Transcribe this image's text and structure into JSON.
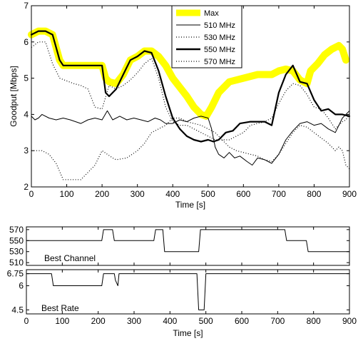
{
  "chart_data": [
    {
      "type": "line",
      "xlabel": "Time [s]",
      "ylabel": "Goodput [Mbps]",
      "xlim": [
        0,
        900
      ],
      "ylim": [
        2,
        7
      ],
      "xticks": [
        "0",
        "100",
        "200",
        "300",
        "400",
        "500",
        "600",
        "700",
        "800",
        "900"
      ],
      "yticks": [
        "2",
        "3",
        "4",
        "5",
        "6",
        "7"
      ],
      "legend_position": "top-center",
      "series": [
        {
          "name": "Max",
          "color": "#ffff00",
          "style": "thick",
          "points": [
            [
              0,
              6.2
            ],
            [
              20,
              6.3
            ],
            [
              40,
              6.3
            ],
            [
              60,
              6.2
            ],
            [
              80,
              5.5
            ],
            [
              90,
              5.35
            ],
            [
              200,
              5.35
            ],
            [
              210,
              5.0
            ],
            [
              220,
              4.9
            ],
            [
              240,
              4.85
            ],
            [
              260,
              5.1
            ],
            [
              280,
              5.5
            ],
            [
              300,
              5.6
            ],
            [
              320,
              5.75
            ],
            [
              340,
              5.75
            ],
            [
              360,
              5.6
            ],
            [
              380,
              5.35
            ],
            [
              400,
              5.0
            ],
            [
              420,
              4.75
            ],
            [
              440,
              4.5
            ],
            [
              460,
              4.2
            ],
            [
              480,
              4.0
            ],
            [
              495,
              3.95
            ],
            [
              510,
              4.2
            ],
            [
              530,
              4.6
            ],
            [
              560,
              4.9
            ],
            [
              600,
              5.0
            ],
            [
              640,
              5.1
            ],
            [
              680,
              5.1
            ],
            [
              700,
              5.2
            ],
            [
              720,
              5.25
            ],
            [
              740,
              5.2
            ],
            [
              760,
              4.95
            ],
            [
              780,
              4.85
            ],
            [
              790,
              5.2
            ],
            [
              810,
              5.4
            ],
            [
              830,
              5.65
            ],
            [
              850,
              5.8
            ],
            [
              870,
              5.9
            ],
            [
              880,
              5.8
            ],
            [
              890,
              5.5
            ]
          ]
        },
        {
          "name": "510 MHz",
          "color": "#000000",
          "style": "thin",
          "points": [
            [
              0,
              3.95
            ],
            [
              10,
              3.85
            ],
            [
              20,
              3.9
            ],
            [
              30,
              4.0
            ],
            [
              50,
              3.9
            ],
            [
              70,
              3.85
            ],
            [
              90,
              3.9
            ],
            [
              110,
              3.85
            ],
            [
              140,
              3.75
            ],
            [
              160,
              3.85
            ],
            [
              180,
              3.9
            ],
            [
              200,
              3.85
            ],
            [
              215,
              4.1
            ],
            [
              230,
              3.85
            ],
            [
              250,
              3.95
            ],
            [
              270,
              3.85
            ],
            [
              290,
              3.9
            ],
            [
              310,
              3.85
            ],
            [
              330,
              3.8
            ],
            [
              350,
              3.9
            ],
            [
              365,
              3.85
            ],
            [
              380,
              3.75
            ],
            [
              400,
              3.75
            ],
            [
              420,
              3.85
            ],
            [
              440,
              3.8
            ],
            [
              460,
              3.9
            ],
            [
              480,
              3.95
            ],
            [
              500,
              3.9
            ],
            [
              510,
              3.6
            ],
            [
              520,
              3.1
            ],
            [
              530,
              2.9
            ],
            [
              545,
              2.8
            ],
            [
              560,
              2.95
            ],
            [
              575,
              2.8
            ],
            [
              590,
              2.85
            ],
            [
              610,
              2.7
            ],
            [
              625,
              2.6
            ],
            [
              640,
              2.8
            ],
            [
              660,
              2.75
            ],
            [
              680,
              2.65
            ],
            [
              700,
              2.9
            ],
            [
              720,
              3.3
            ],
            [
              740,
              3.55
            ],
            [
              760,
              3.75
            ],
            [
              780,
              3.8
            ],
            [
              800,
              3.7
            ],
            [
              820,
              3.75
            ],
            [
              840,
              3.6
            ],
            [
              860,
              3.5
            ],
            [
              880,
              3.9
            ],
            [
              900,
              4.1
            ]
          ]
        },
        {
          "name": "530 MHz",
          "color": "#000000",
          "style": "dotted",
          "points": [
            [
              0,
              3.0
            ],
            [
              30,
              3.0
            ],
            [
              50,
              2.9
            ],
            [
              70,
              2.65
            ],
            [
              90,
              2.2
            ],
            [
              140,
              2.2
            ],
            [
              160,
              2.4
            ],
            [
              180,
              2.6
            ],
            [
              200,
              3.0
            ],
            [
              230,
              2.8
            ],
            [
              240,
              2.75
            ],
            [
              270,
              2.8
            ],
            [
              300,
              3.0
            ],
            [
              320,
              3.2
            ],
            [
              340,
              3.5
            ],
            [
              360,
              3.6
            ],
            [
              380,
              3.7
            ],
            [
              400,
              3.9
            ],
            [
              420,
              3.9
            ],
            [
              440,
              3.8
            ],
            [
              460,
              3.75
            ],
            [
              480,
              3.7
            ],
            [
              500,
              3.6
            ],
            [
              520,
              3.5
            ],
            [
              540,
              3.3
            ],
            [
              560,
              3.1
            ],
            [
              580,
              3.0
            ],
            [
              600,
              2.95
            ],
            [
              620,
              2.9
            ],
            [
              640,
              2.85
            ],
            [
              660,
              2.75
            ],
            [
              680,
              2.7
            ],
            [
              700,
              2.9
            ],
            [
              720,
              3.2
            ],
            [
              740,
              3.5
            ],
            [
              760,
              3.7
            ],
            [
              780,
              3.65
            ],
            [
              800,
              3.5
            ],
            [
              820,
              3.35
            ],
            [
              840,
              3.2
            ],
            [
              860,
              3.0
            ],
            [
              870,
              3.1
            ],
            [
              880,
              3.0
            ],
            [
              890,
              2.6
            ],
            [
              900,
              2.5
            ]
          ]
        },
        {
          "name": "550 MHz",
          "color": "#000000",
          "style": "thick",
          "points": [
            [
              0,
              6.2
            ],
            [
              20,
              6.3
            ],
            [
              40,
              6.3
            ],
            [
              60,
              6.2
            ],
            [
              80,
              5.5
            ],
            [
              90,
              5.35
            ],
            [
              200,
              5.35
            ],
            [
              210,
              4.6
            ],
            [
              220,
              4.5
            ],
            [
              240,
              4.7
            ],
            [
              260,
              5.1
            ],
            [
              280,
              5.5
            ],
            [
              300,
              5.6
            ],
            [
              320,
              5.75
            ],
            [
              340,
              5.7
            ],
            [
              360,
              5.2
            ],
            [
              380,
              4.5
            ],
            [
              400,
              3.9
            ],
            [
              420,
              3.6
            ],
            [
              440,
              3.4
            ],
            [
              460,
              3.3
            ],
            [
              480,
              3.25
            ],
            [
              500,
              3.3
            ],
            [
              515,
              3.25
            ],
            [
              530,
              3.3
            ],
            [
              550,
              3.5
            ],
            [
              570,
              3.55
            ],
            [
              590,
              3.75
            ],
            [
              620,
              3.8
            ],
            [
              640,
              3.8
            ],
            [
              660,
              3.8
            ],
            [
              680,
              3.7
            ],
            [
              700,
              4.6
            ],
            [
              720,
              5.1
            ],
            [
              740,
              5.35
            ],
            [
              760,
              4.9
            ],
            [
              780,
              4.85
            ],
            [
              800,
              4.4
            ],
            [
              820,
              4.1
            ],
            [
              840,
              4.15
            ],
            [
              860,
              4.0
            ],
            [
              880,
              4.0
            ],
            [
              900,
              3.95
            ]
          ]
        },
        {
          "name": "570 MHz",
          "color": "#000000",
          "style": "dotted",
          "points": [
            [
              0,
              5.85
            ],
            [
              20,
              6.0
            ],
            [
              40,
              6.0
            ],
            [
              60,
              5.4
            ],
            [
              80,
              5.0
            ],
            [
              120,
              4.85
            ],
            [
              140,
              4.8
            ],
            [
              160,
              4.7
            ],
            [
              180,
              4.2
            ],
            [
              200,
              4.15
            ],
            [
              220,
              4.8
            ],
            [
              240,
              4.7
            ],
            [
              260,
              4.8
            ],
            [
              280,
              4.95
            ],
            [
              300,
              5.15
            ],
            [
              320,
              5.4
            ],
            [
              340,
              5.55
            ],
            [
              360,
              5.0
            ],
            [
              380,
              4.2
            ],
            [
              400,
              3.8
            ],
            [
              420,
              3.7
            ],
            [
              440,
              3.7
            ],
            [
              460,
              3.6
            ],
            [
              480,
              3.5
            ],
            [
              500,
              3.4
            ],
            [
              520,
              3.3
            ],
            [
              540,
              3.3
            ],
            [
              560,
              3.3
            ],
            [
              580,
              3.4
            ],
            [
              600,
              3.5
            ],
            [
              620,
              3.7
            ],
            [
              640,
              3.75
            ],
            [
              660,
              3.8
            ],
            [
              680,
              3.9
            ],
            [
              700,
              4.3
            ],
            [
              720,
              4.65
            ],
            [
              740,
              4.85
            ],
            [
              760,
              4.8
            ],
            [
              780,
              4.55
            ],
            [
              800,
              4.2
            ],
            [
              820,
              4.15
            ],
            [
              840,
              3.9
            ],
            [
              860,
              3.6
            ],
            [
              880,
              3.8
            ],
            [
              890,
              3.85
            ],
            [
              900,
              4.0
            ]
          ]
        }
      ]
    },
    {
      "type": "line",
      "title": "Best Channel",
      "xlim": [
        0,
        900
      ],
      "ylim": [
        505,
        575
      ],
      "yticks": [
        "510",
        "530",
        "550",
        "570"
      ],
      "series": [
        {
          "color": "#000000",
          "style": "step",
          "points": [
            [
              0,
              550
            ],
            [
              210,
              550
            ],
            [
              215,
              570
            ],
            [
              240,
              570
            ],
            [
              245,
              550
            ],
            [
              355,
              550
            ],
            [
              360,
              570
            ],
            [
              380,
              570
            ],
            [
              385,
              530
            ],
            [
              480,
              530
            ],
            [
              485,
              570
            ],
            [
              720,
              570
            ],
            [
              725,
              550
            ],
            [
              780,
              550
            ],
            [
              785,
              530
            ],
            [
              900,
              530
            ]
          ]
        }
      ]
    },
    {
      "type": "line",
      "title": "Best Rate",
      "xlabel": "Time [s]",
      "xlim": [
        0,
        900
      ],
      "xticks": [
        "0",
        "100",
        "200",
        "300",
        "400",
        "500",
        "600",
        "700",
        "800",
        "900"
      ],
      "ylim": [
        4.25,
        7.0
      ],
      "yticks": [
        "4.5",
        "6",
        "6.75"
      ],
      "series": [
        {
          "color": "#000000",
          "style": "step",
          "points": [
            [
              0,
              6.75
            ],
            [
              70,
              6.75
            ],
            [
              75,
              6
            ],
            [
              210,
              6
            ],
            [
              215,
              6.75
            ],
            [
              245,
              6.75
            ],
            [
              248,
              6.35
            ],
            [
              255,
              6.0
            ],
            [
              258,
              6.75
            ],
            [
              475,
              6.75
            ],
            [
              480,
              4.5
            ],
            [
              495,
              4.5
            ],
            [
              500,
              6.75
            ],
            [
              900,
              6.75
            ]
          ]
        }
      ]
    }
  ],
  "legend": [
    {
      "label": "Max"
    },
    {
      "label": "510 MHz"
    },
    {
      "label": "530 MHz"
    },
    {
      "label": "550 MHz"
    },
    {
      "label": "570 MHz"
    }
  ]
}
